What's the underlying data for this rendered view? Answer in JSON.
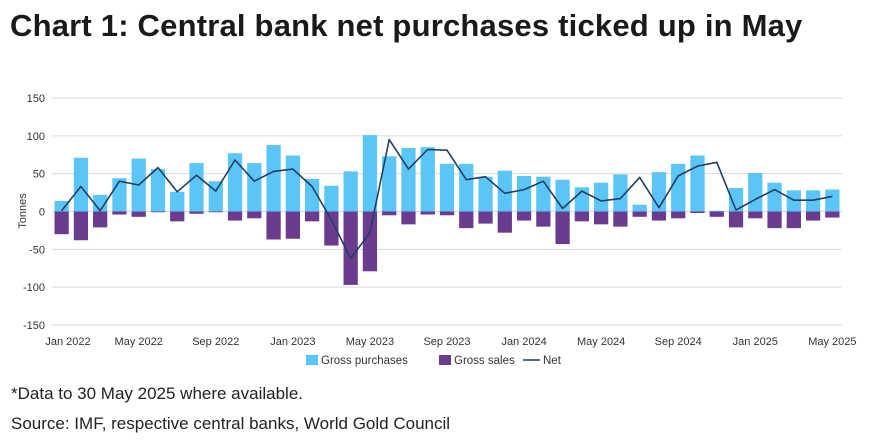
{
  "title": "Chart 1: Central bank net purchases ticked up in May",
  "footnotes": {
    "note": "*Data to 30 May 2025 where available.",
    "source": "Source: IMF, respective central banks, World Gold Council"
  },
  "colors": {
    "gross_purchases": "#5bc6f5",
    "gross_sales": "#6b3b8f",
    "net": "#1f3f63",
    "grid": "#d9d9d9",
    "axis_text": "#333333"
  },
  "chart_data": {
    "type": "bar",
    "ylabel": "Tonnes",
    "xlabel": "",
    "ylim": [
      -150,
      150
    ],
    "yticks": [
      150,
      100,
      50,
      0,
      -50,
      -100,
      -150
    ],
    "grid": true,
    "legend_position": "bottom",
    "categories": [
      "Jan 2022",
      "Feb 2022",
      "Mar 2022",
      "Apr 2022",
      "May 2022",
      "Jun 2022",
      "Jul 2022",
      "Aug 2022",
      "Sep 2022",
      "Oct 2022",
      "Nov 2022",
      "Dec 2022",
      "Jan 2023",
      "Feb 2023",
      "Mar 2023",
      "Apr 2023",
      "May 2023",
      "Jun 2023",
      "Jul 2023",
      "Aug 2023",
      "Sep 2023",
      "Oct 2023",
      "Nov 2023",
      "Dec 2023",
      "Jan 2024",
      "Feb 2024",
      "Mar 2024",
      "Apr 2024",
      "May 2024",
      "Jun 2024",
      "Jul 2024",
      "Aug 2024",
      "Sep 2024",
      "Oct 2024",
      "Nov 2024",
      "Dec 2024",
      "Jan 2025",
      "Feb 2025",
      "Mar 2025",
      "Apr 2025",
      "May 2025"
    ],
    "x_tick_labels": [
      "Jan 2022",
      "May 2022",
      "Sep 2022",
      "Jan 2023",
      "May 2023",
      "Sep 2023",
      "Jan 2024",
      "May 2024",
      "Sep 2024",
      "Jan 2025",
      "May 2025"
    ],
    "x_tick_indices": [
      0,
      4,
      8,
      12,
      16,
      20,
      24,
      28,
      32,
      36,
      40
    ],
    "series": [
      {
        "name": "Gross purchases",
        "type": "bar",
        "values": [
          14,
          71,
          22,
          44,
          70,
          56,
          26,
          64,
          40,
          77,
          64,
          88,
          74,
          43,
          34,
          53,
          101,
          73,
          84,
          85,
          63,
          63,
          46,
          54,
          47,
          46,
          42,
          32,
          38,
          49,
          9,
          52,
          63,
          74,
          1,
          31,
          51,
          38,
          28,
          28,
          29
        ]
      },
      {
        "name": "Gross sales",
        "type": "bar",
        "values": [
          -30,
          -38,
          -21,
          -4,
          -7,
          -1,
          -13,
          -3,
          -1,
          -12,
          -9,
          -37,
          -36,
          -13,
          -45,
          -97,
          -79,
          -5,
          -17,
          -4,
          -5,
          -22,
          -16,
          -28,
          -12,
          -20,
          -43,
          -13,
          -17,
          -20,
          -7,
          -12,
          -9,
          -2,
          -7,
          -21,
          -9,
          -22,
          -22,
          -12,
          -8
        ]
      },
      {
        "name": "Net",
        "type": "line",
        "values": [
          1,
          33,
          1,
          40,
          35,
          58,
          26,
          48,
          27,
          68,
          40,
          53,
          56,
          33,
          -11,
          -62,
          -28,
          95,
          56,
          82,
          81,
          42,
          46,
          24,
          29,
          40,
          4,
          27,
          14,
          17,
          45,
          5,
          47,
          60,
          65,
          2,
          16,
          29,
          15,
          15,
          20
        ]
      }
    ]
  }
}
